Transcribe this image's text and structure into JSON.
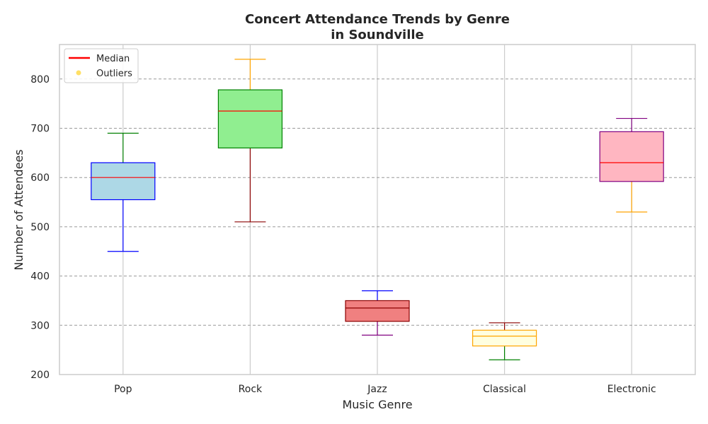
{
  "chart_data": {
    "type": "boxplot",
    "title": "Concert Attendance Trends by Genre",
    "subtitle": "in Soundville",
    "xlabel": "Music Genre",
    "ylabel": "Number of Attendees",
    "ylim": [
      200,
      870
    ],
    "yticks": [
      200,
      300,
      400,
      500,
      600,
      700,
      800
    ],
    "grid": {
      "x": true,
      "y": true,
      "y_style": "dashed"
    },
    "legend": {
      "placement": "top-left",
      "entries": [
        {
          "label": "Median",
          "marker": "line",
          "color": "#ff0000"
        },
        {
          "label": "Outliers",
          "marker": "dot",
          "color": "#ffe066"
        }
      ]
    },
    "categories": [
      "Pop",
      "Rock",
      "Jazz",
      "Classical",
      "Electronic"
    ],
    "boxes": [
      {
        "category": "Pop",
        "whisker_low": 450,
        "q1": 555,
        "median": 600,
        "q3": 630,
        "whisker_high": 690,
        "fill": "#add8e6",
        "edge": "#0000ff",
        "low_whisker_color": "#0000ff",
        "high_whisker_color": "#008000",
        "median_color": "#ff0000"
      },
      {
        "category": "Rock",
        "whisker_low": 510,
        "q1": 660,
        "median": 735,
        "q3": 778,
        "whisker_high": 840,
        "fill": "#90ee90",
        "edge": "#008000",
        "low_whisker_color": "#8b0000",
        "high_whisker_color": "#ffa500",
        "median_color": "#ff0000"
      },
      {
        "category": "Jazz",
        "whisker_low": 280,
        "q1": 308,
        "median": 335,
        "q3": 350,
        "whisker_high": 370,
        "fill": "#f08080",
        "edge": "#8b0000",
        "low_whisker_color": "#800080",
        "high_whisker_color": "#0000ff",
        "median_color": "#8b0000"
      },
      {
        "category": "Classical",
        "whisker_low": 230,
        "q1": 258,
        "median": 278,
        "q3": 290,
        "whisker_high": 305,
        "fill": "#ffffe0",
        "edge": "#ffa500",
        "low_whisker_color": "#008000",
        "high_whisker_color": "#8b0000",
        "median_color": "#ffa500"
      },
      {
        "category": "Electronic",
        "whisker_low": 530,
        "q1": 592,
        "median": 630,
        "q3": 693,
        "whisker_high": 720,
        "fill": "#ffb6c1",
        "edge": "#800080",
        "low_whisker_color": "#ffa500",
        "high_whisker_color": "#800080",
        "median_color": "#ff0000"
      }
    ]
  }
}
